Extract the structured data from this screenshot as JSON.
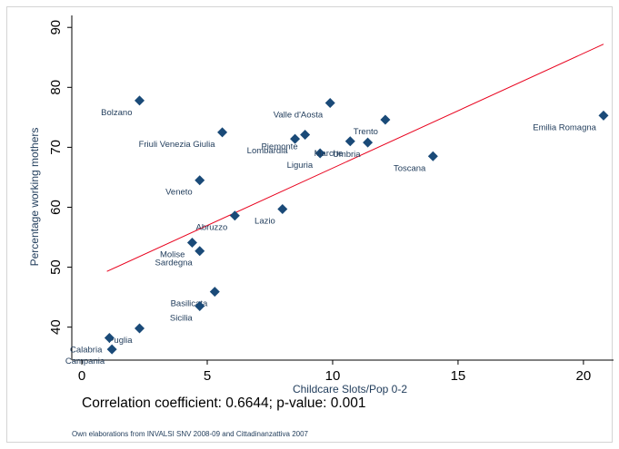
{
  "chart_data": {
    "type": "scatter",
    "xlabel": "Childcare Slots/Pop 0-2",
    "ylabel": "Percentage working mothers",
    "xlim": [
      -0.4,
      21.2
    ],
    "ylim": [
      34.5,
      92
    ],
    "xticks": [
      0,
      5,
      10,
      15,
      20
    ],
    "yticks": [
      40,
      50,
      60,
      70,
      80,
      90
    ],
    "grid": false,
    "legend": "none",
    "points": [
      {
        "label": "Bolzano",
        "x": 2.3,
        "y": 77.8,
        "label_pos": "below-left"
      },
      {
        "label": "Friuli Venezia Giulia",
        "x": 5.6,
        "y": 72.5,
        "label_pos": "below-left"
      },
      {
        "label": "Valle d'Aosta",
        "x": 9.9,
        "y": 77.4,
        "label_pos": "below-left"
      },
      {
        "label": "Trento",
        "x": 12.1,
        "y": 74.6,
        "label_pos": "below-left"
      },
      {
        "label": "Piemonte",
        "x": 8.9,
        "y": 72.1,
        "label_pos": "below-left"
      },
      {
        "label": "Lombardia",
        "x": 8.5,
        "y": 71.4,
        "label_pos": "below-left"
      },
      {
        "label": "Liguria",
        "x": 9.5,
        "y": 69.0,
        "label_pos": "below-left"
      },
      {
        "label": "Marche",
        "x": 10.7,
        "y": 71.0,
        "label_pos": "below-left"
      },
      {
        "label": "Umbria",
        "x": 11.4,
        "y": 70.8,
        "label_pos": "below-left"
      },
      {
        "label": "Toscana",
        "x": 14.0,
        "y": 68.5,
        "label_pos": "below-left"
      },
      {
        "label": "Emilia Romagna",
        "x": 20.8,
        "y": 75.3,
        "label_pos": "below-left"
      },
      {
        "label": "Veneto",
        "x": 4.7,
        "y": 64.5,
        "label_pos": "below-left"
      },
      {
        "label": "Lazio",
        "x": 8.0,
        "y": 59.7,
        "label_pos": "below-left"
      },
      {
        "label": "Abruzzo",
        "x": 6.1,
        "y": 58.6,
        "label_pos": "below-left"
      },
      {
        "label": "Molise",
        "x": 4.4,
        "y": 54.1,
        "label_pos": "below-left"
      },
      {
        "label": "Sardegna",
        "x": 4.7,
        "y": 52.7,
        "label_pos": "below-left"
      },
      {
        "label": "Basilicata",
        "x": 5.3,
        "y": 45.9,
        "label_pos": "below-left"
      },
      {
        "label": "Sicilia",
        "x": 4.7,
        "y": 43.5,
        "label_pos": "below-left"
      },
      {
        "label": "Puglia",
        "x": 2.3,
        "y": 39.8,
        "label_pos": "below-left"
      },
      {
        "label": "Calabria",
        "x": 1.1,
        "y": 38.2,
        "label_pos": "below-left"
      },
      {
        "label": "Campania",
        "x": 1.2,
        "y": 36.3,
        "label_pos": "below-left"
      }
    ],
    "fit_line": {
      "x": [
        1.0,
        20.8
      ],
      "y": [
        49.3,
        87.2
      ],
      "color": "#e8001c"
    },
    "marker_color": "#1a4a78"
  },
  "correlation_text": "Correlation coefficient: 0.6644; p-value: 0.001",
  "source_note": "Own elaborations from INVALSI SNV 2008-09 and Cittadinanzattiva 2007"
}
